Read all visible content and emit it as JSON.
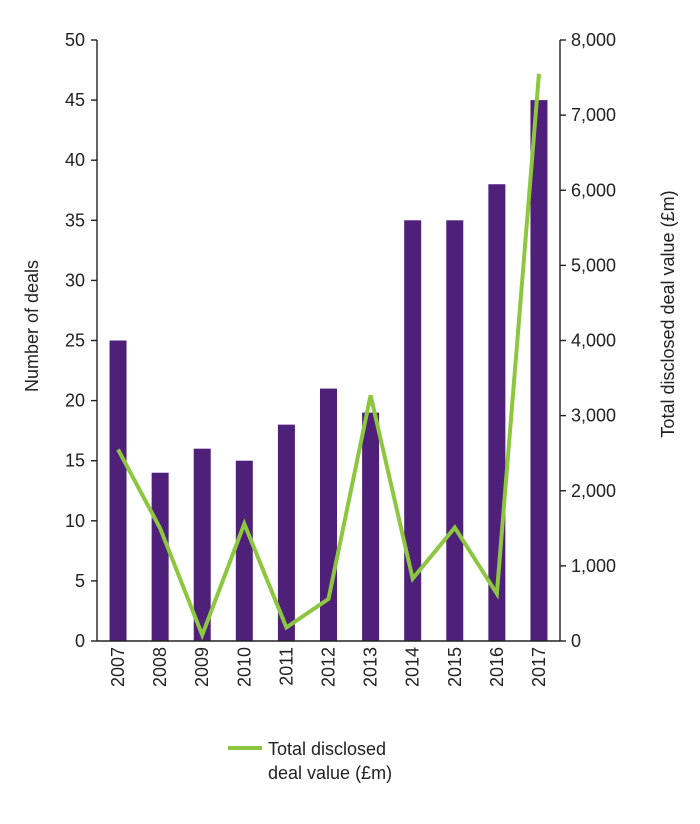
{
  "chart_data": {
    "type": "bar",
    "categories": [
      "2007",
      "2008",
      "2009",
      "2010",
      "2011",
      "2012",
      "2013",
      "2014",
      "2015",
      "2016",
      "2017"
    ],
    "series": [
      {
        "type": "bar",
        "axis": "left",
        "color": "#4e2079",
        "values": [
          25,
          14,
          16,
          15,
          18,
          21,
          19,
          35,
          35,
          38,
          45
        ]
      },
      {
        "name": "Total disclosed deal value (£m)",
        "type": "line",
        "axis": "right",
        "color": "#8dc63f",
        "values": [
          2550,
          1500,
          80,
          1560,
          180,
          560,
          3270,
          830,
          1510,
          630,
          7550
        ]
      }
    ],
    "ylabel": "Number of deals",
    "ylim": [
      0,
      50
    ],
    "yticks": [
      "0",
      "5",
      "10",
      "15",
      "20",
      "25",
      "30",
      "35",
      "40",
      "45",
      "50"
    ],
    "y2label": "Total disclosed deal value (£m)",
    "y2lim": [
      0,
      8000
    ],
    "y2ticks": [
      "0",
      "1,000",
      "2,000",
      "3,000",
      "4,000",
      "5,000",
      "6,000",
      "7,000",
      "8,000"
    ],
    "grid": false,
    "legend": {
      "placement": "bottom-center",
      "line1": "Total disclosed",
      "line2": "deal value (£m)"
    }
  }
}
